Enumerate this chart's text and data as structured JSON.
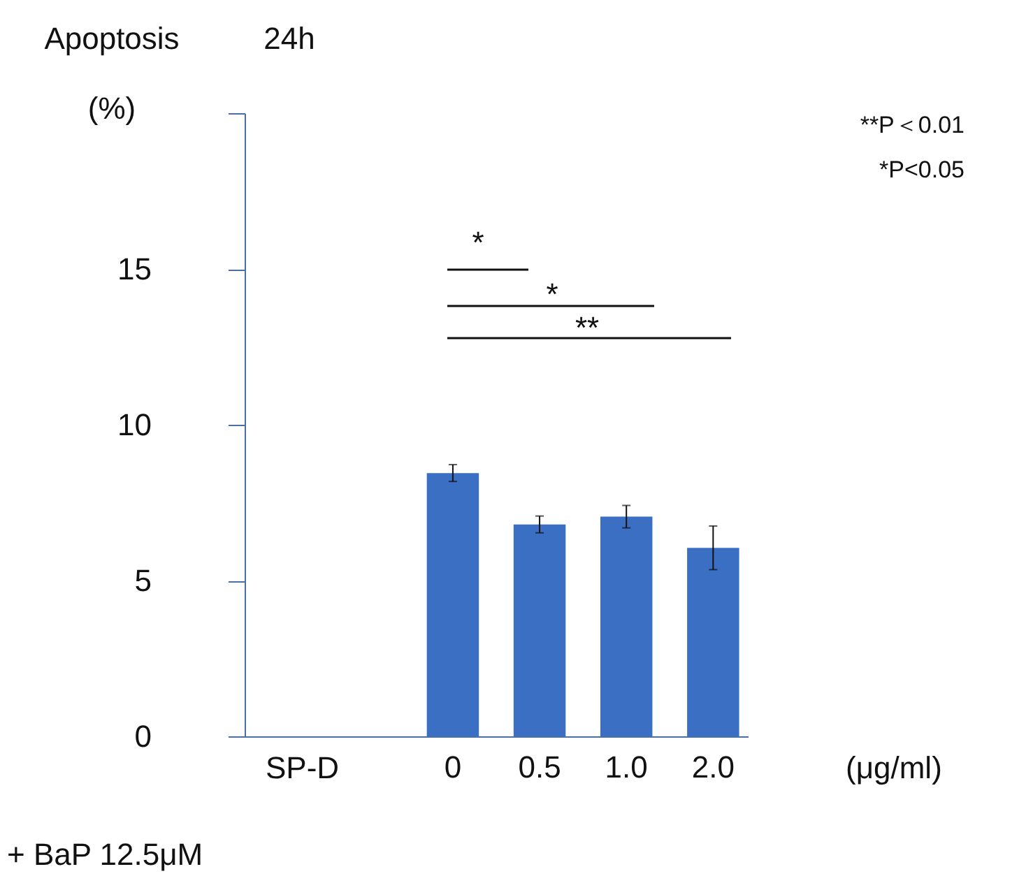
{
  "chart_data": {
    "type": "bar",
    "title": "24h",
    "ylabel": "Apoptosis (%)",
    "xlabel": "SP-D",
    "categories": [
      null,
      null,
      "0",
      "0.5",
      "1.0",
      "2.0"
    ],
    "values": [
      null,
      null,
      8.45,
      6.8,
      7.05,
      6.05
    ],
    "errors": [
      null,
      null,
      0.27,
      0.27,
      0.36,
      0.7
    ],
    "color": "#3a6fc4",
    "ylim": [
      0,
      20
    ],
    "yticks": [
      0,
      5,
      10,
      15,
      {
        "value": 20,
        "label": null
      }
    ],
    "grid": false,
    "annotations": [
      "*",
      "*",
      "**",
      "**P＜0.01",
      "*P<0.05",
      "(μg/ml)",
      "+ BaP 12.5μM"
    ]
  }
}
